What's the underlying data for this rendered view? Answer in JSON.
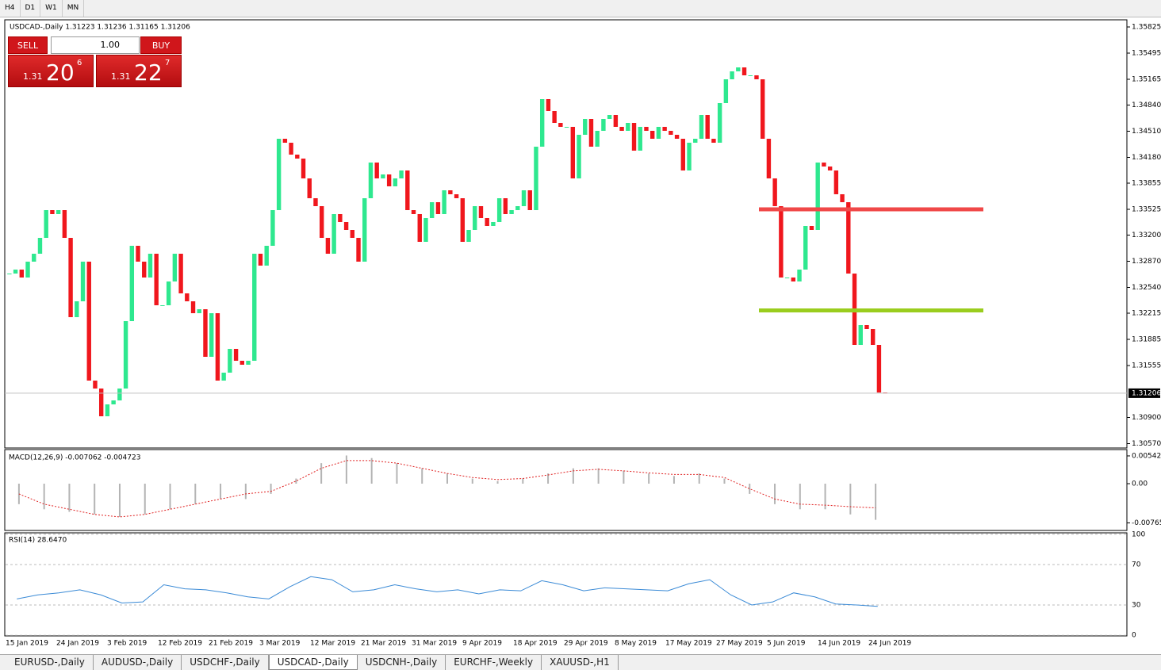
{
  "toolbar": {
    "timeframes": [
      "H4",
      "D1",
      "W1",
      "MN"
    ]
  },
  "trade_panel": {
    "sell": "SELL",
    "lot": "1.00",
    "buy": "BUY",
    "sell_price": {
      "small": "1.31",
      "big": "20",
      "point": "6"
    },
    "buy_price": {
      "small": "1.31",
      "big": "22",
      "point": "7"
    }
  },
  "chart_data": {
    "type": "candlestick",
    "title": "USDCAD-,Daily  1.31223 1.31236 1.31165 1.31206",
    "up_color": "#2ee88f",
    "down_color": "#f0171d",
    "values": [
      1.32715,
      1.32765,
      1.32665,
      1.32865,
      1.32965,
      1.33165,
      1.33515,
      1.33465,
      1.33515,
      1.33165,
      1.32165,
      1.32365,
      1.32865,
      1.31365,
      1.31265,
      1.30915,
      1.31065,
      1.31115,
      1.31265,
      1.32115,
      1.33065,
      1.32865,
      1.32665,
      1.32965,
      1.32315,
      1.32315,
      1.32615,
      1.32965,
      1.32465,
      1.32365,
      1.32215,
      1.32265,
      1.31665,
      1.32215,
      1.31365,
      1.31465,
      1.31765,
      1.31615,
      1.31565,
      1.31615,
      1.32965,
      1.32815,
      1.33065,
      1.33515,
      1.34415,
      1.34365,
      1.34215,
      1.34165,
      1.33915,
      1.33665,
      1.33565,
      1.33165,
      1.32965,
      1.33465,
      1.33365,
      1.33265,
      1.33165,
      1.32865,
      1.33665,
      1.34115,
      1.33915,
      1.33965,
      1.33815,
      1.33915,
      1.34015,
      1.33515,
      1.33465,
      1.33115,
      1.33415,
      1.33615,
      1.33465,
      1.33765,
      1.33715,
      1.33665,
      1.33115,
      1.33265,
      1.33565,
      1.33415,
      1.33315,
      1.33365,
      1.33665,
      1.33465,
      1.33515,
      1.33565,
      1.33765,
      1.33515,
      1.34315,
      1.34915,
      1.34765,
      1.34615,
      1.34565,
      1.34565,
      1.33915,
      1.34465,
      1.34665,
      1.34315,
      1.34515,
      1.34665,
      1.34715,
      1.34565,
      1.34515,
      1.34615,
      1.34265,
      1.34565,
      1.34515,
      1.34415,
      1.34565,
      1.34515,
      1.34465,
      1.34415,
      1.34015,
      1.34365,
      1.34415,
      1.34715,
      1.34415,
      1.34365,
      1.34865,
      1.35165,
      1.35265,
      1.35315,
      1.35215,
      1.35215,
      1.35165,
      1.34415,
      1.33915,
      1.33565,
      1.32665,
      1.32665,
      1.32615,
      1.32765,
      1.33315,
      1.33265,
      1.34115,
      1.34065,
      1.34015,
      1.33715,
      1.33615,
      1.32715,
      1.31815,
      1.32065,
      1.32015,
      1.31815,
      1.31215,
      1.31206
    ],
    "current_price": 1.31206,
    "levels": [
      {
        "value": 1.33525,
        "color": "#f04848"
      },
      {
        "value": 1.3225,
        "color": "#9acd1e"
      }
    ],
    "ylim": [
      1.30515,
      1.35895
    ],
    "yticks": [
      1.35825,
      1.35495,
      1.35165,
      {
        "value": 1.3484,
        "label": "1.34840"
      },
      {
        "value": 1.3451,
        "label": "1.34510"
      },
      {
        "value": 1.3418,
        "label": "1.34180"
      },
      1.33855,
      1.33525,
      {
        "value": 1.332,
        "label": "1.33200"
      },
      {
        "value": 1.3287,
        "label": "1.32870"
      },
      {
        "value": 1.3254,
        "label": "1.32540"
      },
      1.32215,
      1.31885,
      1.31555,
      {
        "value": 1.309,
        "label": "1.30900"
      },
      {
        "value": 1.3057,
        "label": "1.30570"
      }
    ],
    "x_labels": [
      "15 Jan 2019",
      "24 Jan 2019",
      "3 Feb 2019",
      "12 Feb 2019",
      "21 Feb 2019",
      "3 Mar 2019",
      "12 Mar 2019",
      "21 Mar 2019",
      "31 Mar 2019",
      "9 Apr 2019",
      "18 Apr 2019",
      "29 Apr 2019",
      "8 May 2019",
      "17 May 2019",
      "27 May 2019",
      "5 Jun 2019",
      "14 Jun 2019",
      "24 Jun 2019"
    ]
  },
  "macd": {
    "label": "MACD(12,26,9) -0.007062 -0.004723",
    "hist_color": "#b4b4b4",
    "signal_color": "#e02020",
    "histogram": [
      -0.004,
      -0.005,
      -0.0055,
      -0.006,
      -0.0065,
      -0.006,
      -0.005,
      -0.004,
      -0.003,
      -0.003,
      -0.002,
      0.001,
      0.004,
      0.0055,
      0.005,
      0.004,
      0.003,
      0.002,
      0.001,
      0.0005,
      0.001,
      0.002,
      0.003,
      0.003,
      0.0025,
      0.002,
      0.0015,
      0.002,
      0.001,
      -0.002,
      -0.004,
      -0.005,
      -0.005,
      -0.006,
      -0.007062
    ],
    "signal": [
      -0.002,
      -0.004,
      -0.005,
      -0.006,
      -0.0065,
      -0.006,
      -0.005,
      -0.004,
      -0.003,
      -0.002,
      -0.0015,
      0.0005,
      0.003,
      0.0045,
      0.0045,
      0.004,
      0.003,
      0.002,
      0.0012,
      0.0008,
      0.001,
      0.0017,
      0.0025,
      0.0028,
      0.0025,
      0.0021,
      0.0018,
      0.0018,
      0.0012,
      -0.001,
      -0.003,
      -0.004,
      -0.0042,
      -0.0045,
      -0.004723
    ],
    "ylim": [
      -0.00898,
      0.0065
    ],
    "yticks": [
      0.005421,
      {
        "value": 0,
        "label": "0.00"
      },
      -0.007656
    ]
  },
  "rsi": {
    "label": "RSI(14) 28.6470",
    "color": "#3a8ad6",
    "values": [
      36,
      40,
      42,
      45,
      40,
      32,
      33,
      50,
      46,
      45,
      42,
      38,
      36,
      48,
      58,
      55,
      43,
      45,
      50,
      46,
      43,
      45,
      41,
      45,
      44,
      54,
      50,
      44,
      47,
      46,
      45,
      44,
      51,
      55,
      40,
      30,
      33,
      42,
      38,
      31,
      30,
      28.647
    ],
    "ylim": [
      -0.6,
      100.6
    ],
    "yticks": [
      100,
      70,
      30,
      0
    ]
  },
  "tabs": [
    "EURUSD-,Daily",
    "AUDUSD-,Daily",
    "USDCHF-,Daily",
    "USDCAD-,Daily",
    "USDCNH-,Daily",
    "EURCHF-,Weekly",
    "XAUUSD-,H1"
  ],
  "active_tab": 3
}
